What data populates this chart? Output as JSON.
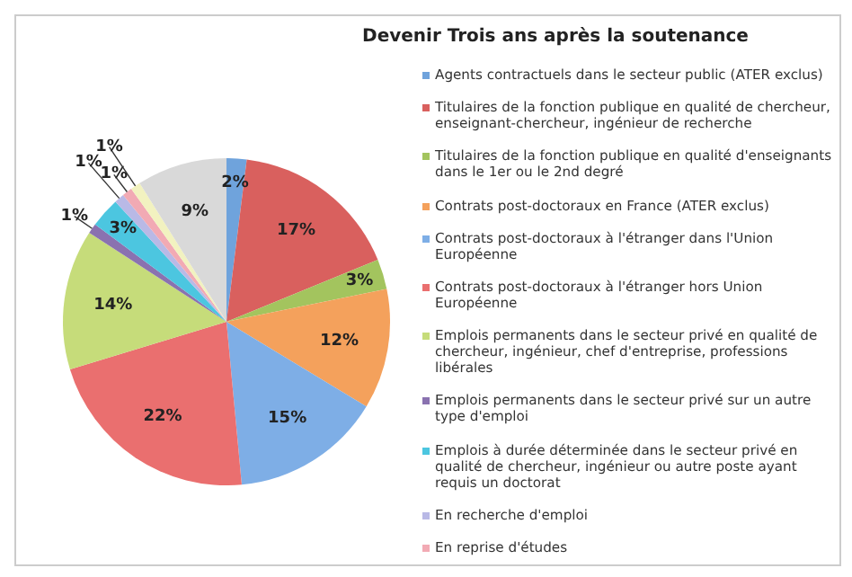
{
  "chart_data": {
    "type": "pie",
    "title": "Devenir Trois ans après la soutenance",
    "legend": "right",
    "categories": [
      "Agents contractuels dans le secteur public (ATER exclus)",
      "Titulaires de la fonction publique en qualité de chercheur, enseignant-chercheur, ingénieur de recherche",
      "Titulaires de la fonction publique en qualité d'enseignants dans le 1er ou le 2nd degré",
      "Contrats post-doctoraux en France (ATER exclus)",
      "Contrats post-doctoraux à l'étranger dans l'Union Européenne",
      "Contrats post-doctoraux à l'étranger hors Union Européenne",
      "Emplois permanents dans le secteur privé en qualité de chercheur, ingénieur, chef d'entreprise, professions libérales",
      "Emplois permanents dans le secteur privé sur un autre type d'emploi",
      "Emplois à durée déterminée dans le secteur privé en qualité de chercheur, ingénieur ou autre poste ayant requis un doctorat",
      "En recherche d'emploi",
      "En reprise d'études",
      null,
      null
    ],
    "values": [
      2,
      17,
      3,
      12,
      15,
      22,
      14,
      1,
      3,
      1,
      1,
      1,
      9
    ],
    "colors": [
      "#6fa3dc",
      "#d9605e",
      "#a3c45e",
      "#f4a15c",
      "#7eaee6",
      "#ea6f6f",
      "#c6dc7a",
      "#8a72b0",
      "#4cc6e0",
      "#b9b9e6",
      "#f2aab4",
      "#f2f2c0",
      "#d9d9d9"
    ],
    "value_labels": [
      "2%",
      "17%",
      "3%",
      "12%",
      "15%",
      "22%",
      "14%",
      "1%",
      "3%",
      "1%",
      "1%",
      "1%",
      "9%"
    ]
  }
}
